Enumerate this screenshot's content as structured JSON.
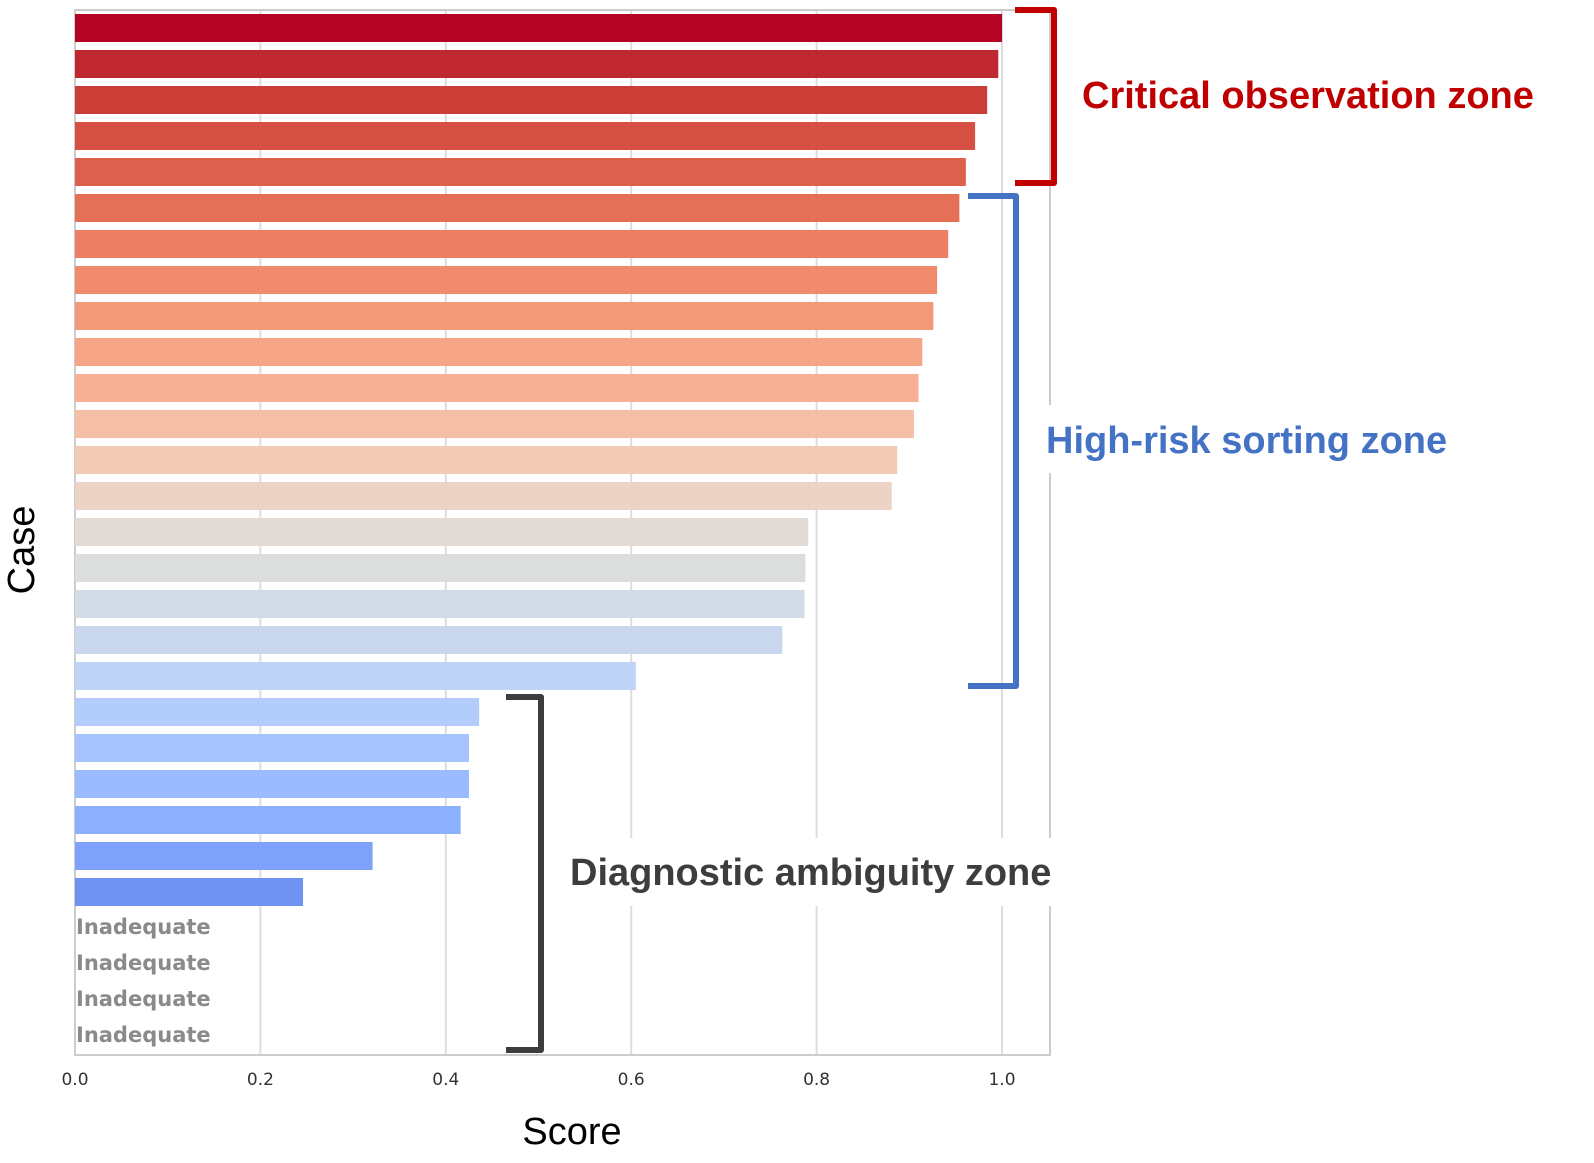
{
  "chart_data": {
    "type": "bar",
    "orientation": "horizontal",
    "xlabel": "Score",
    "ylabel": "Case",
    "xlim": [
      0.0,
      1.05
    ],
    "xticks": [
      0.0,
      0.2,
      0.4,
      0.6,
      0.8,
      1.0
    ],
    "xtick_labels": [
      "0.0",
      "0.2",
      "0.4",
      "0.6",
      "0.8",
      "1.0"
    ],
    "grid": "vertical",
    "colormap": "coolwarm (descending)",
    "values": [
      1.0,
      0.996,
      0.984,
      0.971,
      0.961,
      0.954,
      0.942,
      0.93,
      0.926,
      0.914,
      0.91,
      0.905,
      0.887,
      0.881,
      0.791,
      0.788,
      0.787,
      0.763,
      0.605,
      0.436,
      0.425,
      0.425,
      0.416,
      0.321,
      0.246,
      0,
      0,
      0,
      0
    ],
    "bar_labels": [
      "",
      "",
      "",
      "",
      "",
      "",
      "",
      "",
      "",
      "",
      "",
      "",
      "",
      "",
      "",
      "",
      "",
      "",
      "",
      "",
      "",
      "",
      "",
      "",
      "",
      "Inadequate",
      "Inadequate",
      "Inadequate",
      "Inadequate"
    ],
    "colors": [
      "#b40426",
      "#c0282f",
      "#cb3e38",
      "#d55042",
      "#dd604e",
      "#e57058",
      "#ec7e65",
      "#f08b6e",
      "#f4987a",
      "#f6a586",
      "#f7b093",
      "#f5bfa6",
      "#f2cbb7",
      "#ebd3c6",
      "#e2dad5",
      "#dcdddd",
      "#d3dbe7",
      "#c9d8ef",
      "#bfd3f6",
      "#b2ccfb",
      "#a5c3fe",
      "#9abbff",
      "#8caffe",
      "#7ea1fa",
      "#6f92f3"
    ],
    "annotations": [
      {
        "text": "Critical observation zone",
        "color": "#c00000",
        "bracket_color": "#c00000",
        "case_range": [
          1,
          5
        ]
      },
      {
        "text": "High-risk sorting zone",
        "color": "#4472c4",
        "bracket_color": "#4472c4",
        "case_range": [
          6,
          19
        ]
      },
      {
        "text": "Diagnostic ambiguity zone",
        "color": "#3d3d3d",
        "bracket_color": "#3d3d3d",
        "case_range": [
          20,
          29
        ]
      }
    ]
  }
}
